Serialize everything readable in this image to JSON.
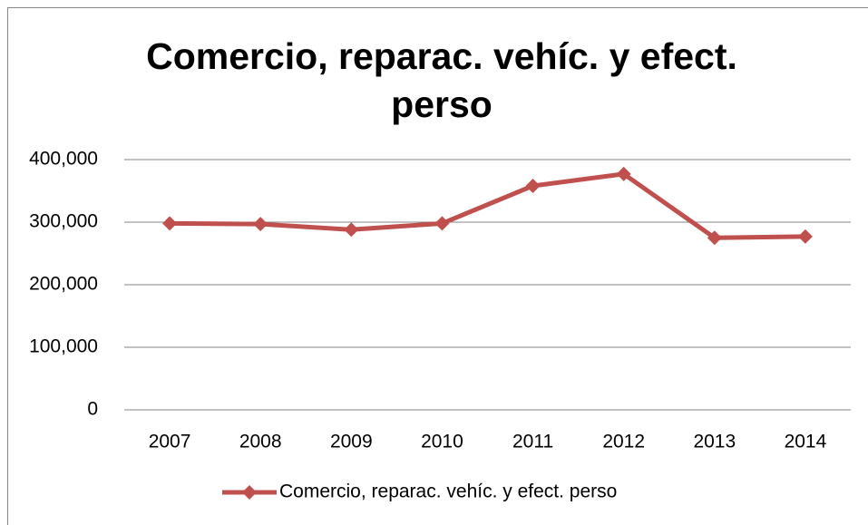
{
  "chart_data": {
    "type": "line",
    "title": "Comercio, reparac. vehíc. y efect. perso",
    "categories": [
      "2007",
      "2008",
      "2009",
      "2010",
      "2011",
      "2012",
      "2013",
      "2014"
    ],
    "series": [
      {
        "name": "Comercio, reparac. vehíc. y efect. perso",
        "color": "#c0504d",
        "values": [
          298000,
          297000,
          288000,
          298000,
          358000,
          377000,
          275000,
          277000
        ]
      }
    ],
    "ylim": [
      0,
      400000
    ],
    "yticks": [
      0,
      {
        "value": 100000,
        "label": "100,000"
      },
      {
        "value": 200000,
        "label": "200,000"
      },
      {
        "value": 300000,
        "label": "300,000"
      },
      {
        "value": 400000,
        "label": "400,000"
      }
    ],
    "grid": true,
    "legend": "bottom"
  }
}
